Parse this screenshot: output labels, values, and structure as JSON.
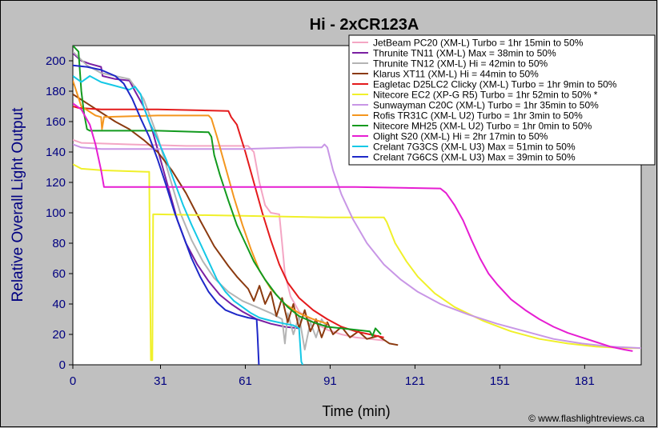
{
  "chart_data": {
    "type": "line",
    "title": "Hi - 2xCR123A",
    "xlabel": "Time (min)",
    "ylabel": "Relative Overall Light Output",
    "xlim": [
      0,
      201
    ],
    "ylim": [
      0,
      210
    ],
    "xticks": [
      0,
      31,
      61,
      91,
      121,
      151,
      181
    ],
    "yticks": [
      0,
      20,
      40,
      60,
      80,
      100,
      120,
      140,
      160,
      180,
      200
    ],
    "grid": false,
    "legend_position": "top-right",
    "credit": "© www.flashlightreviews.ca",
    "colors": {
      "background": "#c0c0c0",
      "plot_background": "#ffffff",
      "axis_label": "#000080",
      "tick_label": "#000080"
    },
    "series": [
      {
        "name": "JetBeam PC20 (XM-L) Turbo = 1hr 15min to 50%",
        "color": "#f4a6c4",
        "points": [
          [
            0,
            148
          ],
          [
            3,
            146
          ],
          [
            20,
            145
          ],
          [
            40,
            144
          ],
          [
            62,
            144
          ],
          [
            64,
            140
          ],
          [
            66,
            120
          ],
          [
            68,
            105
          ],
          [
            70,
            100
          ],
          [
            73,
            99
          ],
          [
            74,
            80
          ],
          [
            75,
            60
          ],
          [
            77,
            45
          ],
          [
            80,
            35
          ],
          [
            85,
            28
          ],
          [
            90,
            23
          ],
          [
            95,
            20
          ],
          [
            100,
            18
          ],
          [
            110,
            16
          ]
        ]
      },
      {
        "name": "Thrunite TN11 (XM-L) Max = 38min to 50%",
        "color": "#7a1fa2",
        "points": [
          [
            0,
            205
          ],
          [
            3,
            200
          ],
          [
            6,
            198
          ],
          [
            10,
            196
          ],
          [
            10.5,
            190
          ],
          [
            15,
            188
          ],
          [
            20,
            187
          ],
          [
            22,
            180
          ],
          [
            25,
            170
          ],
          [
            28,
            155
          ],
          [
            31,
            135
          ],
          [
            34,
            115
          ],
          [
            37,
            95
          ],
          [
            40,
            80
          ],
          [
            44,
            66
          ],
          [
            48,
            55
          ],
          [
            52,
            46
          ],
          [
            56,
            40
          ],
          [
            60,
            35
          ],
          [
            65,
            30
          ],
          [
            70,
            27
          ],
          [
            75,
            25
          ],
          [
            80,
            24
          ]
        ]
      },
      {
        "name": "Thrunite TN12 (XM-L) Hi = 42min to 50%",
        "color": "#b4b4b4",
        "points": [
          [
            0,
            206
          ],
          [
            5,
            197
          ],
          [
            10,
            192
          ],
          [
            15,
            190
          ],
          [
            20,
            188
          ],
          [
            25,
            175
          ],
          [
            30,
            150
          ],
          [
            34,
            125
          ],
          [
            38,
            100
          ],
          [
            42,
            82
          ],
          [
            46,
            68
          ],
          [
            50,
            57
          ],
          [
            55,
            48
          ],
          [
            60,
            42
          ],
          [
            65,
            38
          ],
          [
            70,
            34
          ],
          [
            74,
            30
          ],
          [
            75,
            14
          ],
          [
            76,
            34
          ],
          [
            78,
            20
          ],
          [
            80,
            32
          ],
          [
            82,
            10
          ],
          [
            84,
            28
          ],
          [
            86,
            18
          ],
          [
            88,
            30
          ],
          [
            90,
            24
          ]
        ]
      },
      {
        "name": "Klarus XT11 (XM-L) Hi = 44min to 50%",
        "color": "#8b3a0f",
        "points": [
          [
            0,
            178
          ],
          [
            5,
            172
          ],
          [
            10,
            166
          ],
          [
            15,
            160
          ],
          [
            20,
            155
          ],
          [
            25,
            148
          ],
          [
            30,
            140
          ],
          [
            35,
            128
          ],
          [
            40,
            113
          ],
          [
            45,
            95
          ],
          [
            50,
            78
          ],
          [
            55,
            65
          ],
          [
            58,
            58
          ],
          [
            62,
            50
          ],
          [
            64,
            42
          ],
          [
            66,
            52
          ],
          [
            68,
            40
          ],
          [
            70,
            48
          ],
          [
            72,
            32
          ],
          [
            74,
            44
          ],
          [
            76,
            28
          ],
          [
            78,
            40
          ],
          [
            80,
            24
          ],
          [
            82,
            36
          ],
          [
            84,
            22
          ],
          [
            86,
            30
          ],
          [
            88,
            18
          ],
          [
            90,
            28
          ],
          [
            92,
            20
          ],
          [
            95,
            25
          ],
          [
            98,
            18
          ],
          [
            101,
            22
          ],
          [
            104,
            17
          ],
          [
            108,
            19
          ],
          [
            112,
            14
          ],
          [
            115,
            13
          ]
        ]
      },
      {
        "name": "Eagletac D25LC2 Clicky (XM-L) Turbo = 1hr 9min to 50%",
        "color": "#e41a1c",
        "points": [
          [
            0,
            170
          ],
          [
            2,
            169
          ],
          [
            10,
            168
          ],
          [
            30,
            168
          ],
          [
            55,
            167
          ],
          [
            56,
            163
          ],
          [
            58,
            158
          ],
          [
            61,
            140
          ],
          [
            64,
            120
          ],
          [
            67,
            100
          ],
          [
            70,
            82
          ],
          [
            73,
            66
          ],
          [
            76,
            54
          ],
          [
            80,
            44
          ],
          [
            85,
            36
          ],
          [
            90,
            30
          ],
          [
            95,
            25
          ],
          [
            100,
            22
          ],
          [
            105,
            20
          ],
          [
            110,
            18
          ]
        ]
      },
      {
        "name": "Nitecore EC2 (XP-G R5) Turbo = 1hr 52min to 50% *",
        "color": "#f0f02a",
        "points": [
          [
            0,
            132
          ],
          [
            3,
            129
          ],
          [
            10,
            128
          ],
          [
            26,
            127
          ],
          [
            27,
            127
          ],
          [
            27.3,
            60
          ],
          [
            27.6,
            3
          ],
          [
            28.1,
            3
          ],
          [
            28.4,
            99
          ],
          [
            30,
            99
          ],
          [
            60,
            98
          ],
          [
            90,
            97
          ],
          [
            110,
            97
          ],
          [
            111,
            94
          ],
          [
            114,
            80
          ],
          [
            118,
            68
          ],
          [
            122,
            58
          ],
          [
            128,
            47
          ],
          [
            135,
            38
          ],
          [
            145,
            29
          ],
          [
            155,
            22
          ],
          [
            165,
            17
          ],
          [
            175,
            14
          ],
          [
            185,
            12
          ],
          [
            195,
            11
          ],
          [
            201,
            11
          ]
        ]
      },
      {
        "name": "Sunwayman C20C (XM-L) Turbo = 1hr 35min to 50%",
        "color": "#c896e6",
        "points": [
          [
            0,
            145
          ],
          [
            3,
            143
          ],
          [
            10,
            142
          ],
          [
            30,
            142
          ],
          [
            60,
            142
          ],
          [
            80,
            143
          ],
          [
            88,
            143
          ],
          [
            89,
            145
          ],
          [
            90,
            143
          ],
          [
            92,
            128
          ],
          [
            95,
            112
          ],
          [
            99,
            96
          ],
          [
            104,
            80
          ],
          [
            110,
            66
          ],
          [
            116,
            56
          ],
          [
            122,
            48
          ],
          [
            130,
            40
          ],
          [
            140,
            33
          ],
          [
            150,
            27
          ],
          [
            160,
            22
          ],
          [
            170,
            17
          ],
          [
            180,
            14
          ],
          [
            190,
            12
          ],
          [
            201,
            11
          ]
        ]
      },
      {
        "name": "Rofis TR31C (XM-L U2) Turbo = 1hr 3min to 50%",
        "color": "#f4961e",
        "points": [
          [
            0,
            187
          ],
          [
            3,
            170
          ],
          [
            8,
            164
          ],
          [
            10,
            163
          ],
          [
            10.3,
            155
          ],
          [
            11,
            163
          ],
          [
            30,
            164
          ],
          [
            48,
            164
          ],
          [
            49,
            162
          ],
          [
            51,
            150
          ],
          [
            54,
            130
          ],
          [
            57,
            110
          ],
          [
            60,
            92
          ],
          [
            63,
            76
          ],
          [
            66,
            62
          ],
          [
            70,
            50
          ],
          [
            75,
            40
          ],
          [
            80,
            34
          ],
          [
            85,
            30
          ],
          [
            90,
            27
          ]
        ]
      },
      {
        "name": "Nitecore MH25 (XM-L U2) Turbo = 1hr 0min to 50%",
        "color": "#129a1e",
        "points": [
          [
            0,
            210
          ],
          [
            2,
            206
          ],
          [
            3,
            180
          ],
          [
            4,
            165
          ],
          [
            5,
            155
          ],
          [
            6,
            154
          ],
          [
            30,
            154
          ],
          [
            48,
            153
          ],
          [
            49,
            150
          ],
          [
            50,
            138
          ],
          [
            52,
            125
          ],
          [
            55,
            108
          ],
          [
            58,
            92
          ],
          [
            61,
            80
          ],
          [
            64,
            68
          ],
          [
            68,
            56
          ],
          [
            72,
            46
          ],
          [
            76,
            38
          ],
          [
            80,
            32
          ],
          [
            85,
            28
          ],
          [
            90,
            25
          ],
          [
            95,
            24
          ],
          [
            100,
            23
          ],
          [
            105,
            22
          ],
          [
            106,
            19
          ],
          [
            107,
            24
          ],
          [
            108,
            22
          ],
          [
            109,
            20
          ]
        ]
      },
      {
        "name": "Olight S20 (XM-L) Hi = 2hr 17min to 50%",
        "color": "#e61ed2",
        "points": [
          [
            0,
            172
          ],
          [
            3,
            168
          ],
          [
            6,
            158
          ],
          [
            8,
            145
          ],
          [
            10,
            128
          ],
          [
            11,
            117
          ],
          [
            15,
            117
          ],
          [
            60,
            117
          ],
          [
            100,
            117
          ],
          [
            130,
            116
          ],
          [
            132,
            113
          ],
          [
            135,
            105
          ],
          [
            138,
            95
          ],
          [
            141,
            82
          ],
          [
            144,
            70
          ],
          [
            147,
            60
          ],
          [
            150,
            53
          ],
          [
            155,
            43
          ],
          [
            160,
            36
          ],
          [
            165,
            30
          ],
          [
            170,
            25
          ],
          [
            175,
            21
          ],
          [
            180,
            18
          ],
          [
            185,
            15
          ],
          [
            190,
            12
          ],
          [
            195,
            10
          ],
          [
            198,
            9
          ]
        ]
      },
      {
        "name": "Crelant 7G3CS (XM-L U3) Max = 51min to 50%",
        "color": "#14c8e6",
        "points": [
          [
            0,
            190
          ],
          [
            3,
            186
          ],
          [
            6,
            190
          ],
          [
            10,
            186
          ],
          [
            14,
            184
          ],
          [
            18,
            182
          ],
          [
            20,
            181
          ],
          [
            22,
            183
          ],
          [
            24,
            178
          ],
          [
            25,
            170
          ],
          [
            27,
            160
          ],
          [
            30,
            148
          ],
          [
            33,
            135
          ],
          [
            36,
            120
          ],
          [
            39,
            105
          ],
          [
            42,
            92
          ],
          [
            45,
            80
          ],
          [
            48,
            68
          ],
          [
            51,
            56
          ],
          [
            54,
            48
          ],
          [
            57,
            42
          ],
          [
            60,
            38
          ],
          [
            63,
            34
          ],
          [
            66,
            31
          ],
          [
            70,
            29
          ],
          [
            75,
            27
          ],
          [
            78,
            26
          ],
          [
            80,
            24
          ],
          [
            80.8,
            2
          ],
          [
            81.3,
            0
          ]
        ]
      },
      {
        "name": "Crelant 7G6CS (XM-L U3) Max = 39min to 50%",
        "color": "#1e28c8",
        "points": [
          [
            0,
            197
          ],
          [
            5,
            196
          ],
          [
            10,
            194
          ],
          [
            15,
            190
          ],
          [
            18,
            185
          ],
          [
            21,
            175
          ],
          [
            24,
            162
          ],
          [
            27,
            150
          ],
          [
            30,
            135
          ],
          [
            33,
            118
          ],
          [
            36,
            100
          ],
          [
            39,
            85
          ],
          [
            42,
            70
          ],
          [
            45,
            58
          ],
          [
            48,
            48
          ],
          [
            51,
            41
          ],
          [
            54,
            36
          ],
          [
            58,
            33
          ],
          [
            62,
            31
          ],
          [
            65,
            30
          ],
          [
            65.3,
            20
          ],
          [
            65.8,
            0
          ]
        ]
      }
    ]
  }
}
